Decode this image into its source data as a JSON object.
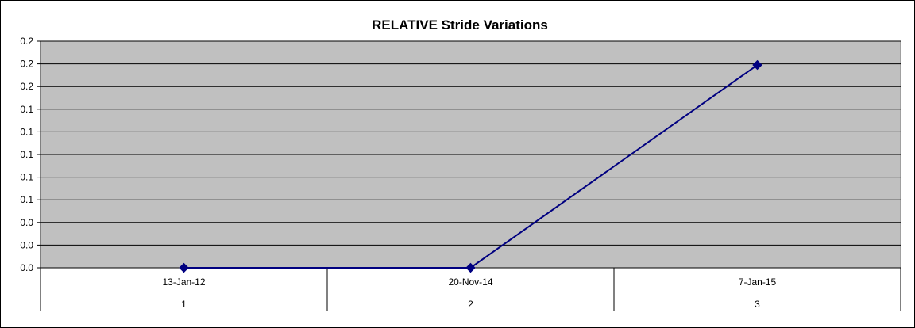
{
  "chart_data": {
    "type": "line",
    "title": "RELATIVE Stride Variations",
    "categories": [
      "13-Jan-12",
      "20-Nov-14",
      "7-Jan-15"
    ],
    "category_numbers": [
      "1",
      "2",
      "3"
    ],
    "series": [
      {
        "values": [
          0.0,
          0.0,
          0.179
        ]
      }
    ],
    "ylim": [
      0,
      0.2
    ],
    "y_tick_values": [
      0,
      0.02,
      0.04,
      0.06,
      0.08,
      0.1,
      0.12,
      0.14,
      0.16,
      0.18,
      0.2
    ],
    "y_tick_labels": [
      "0.0",
      "0.0",
      "0.0",
      "0.1",
      "0.1",
      "0.1",
      "0.1",
      "0.1",
      "0.2",
      "0.2",
      "0.2"
    ],
    "grid": true,
    "colors": {
      "plot_background": "#c0c0c0",
      "series_line": "#000080",
      "marker": "#000080",
      "gridline": "#000000"
    }
  }
}
